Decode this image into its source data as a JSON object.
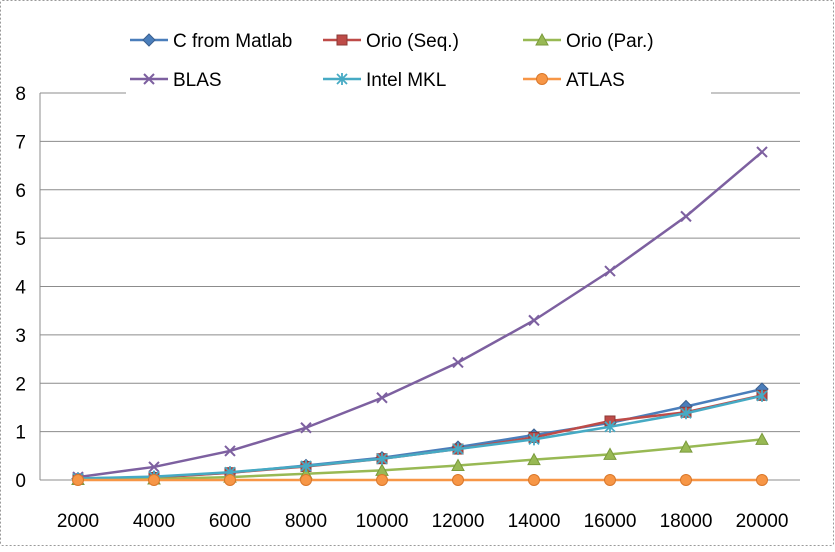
{
  "chart_data": {
    "type": "line",
    "title": "",
    "xlabel": "",
    "ylabel": "",
    "x": [
      2000,
      4000,
      6000,
      8000,
      10000,
      12000,
      14000,
      16000,
      18000,
      20000
    ],
    "x_tick_labels": [
      "2000",
      "4000",
      "6000",
      "8000",
      "10000",
      "12000",
      "14000",
      "16000",
      "18000",
      "20000"
    ],
    "y_tick_labels": [
      "0",
      "1",
      "2",
      "3",
      "4",
      "5",
      "6",
      "7",
      "8"
    ],
    "ylim": [
      0,
      8
    ],
    "grid": "horizontal",
    "legend_position": "top",
    "series": [
      {
        "name": "C from Matlab",
        "color": "#4a7ebb",
        "marker": "diamond",
        "values": [
          0.03,
          0.06,
          0.15,
          0.3,
          0.46,
          0.68,
          0.93,
          1.18,
          1.52,
          1.88
        ]
      },
      {
        "name": "Orio (Seq.)",
        "color": "#be4b48",
        "marker": "square",
        "values": [
          0.02,
          0.05,
          0.15,
          0.28,
          0.44,
          0.64,
          0.88,
          1.22,
          1.4,
          1.75
        ]
      },
      {
        "name": "Orio (Par.)",
        "color": "#98b954",
        "marker": "triangle",
        "values": [
          0.01,
          0.02,
          0.06,
          0.13,
          0.2,
          0.3,
          0.42,
          0.53,
          0.68,
          0.84
        ]
      },
      {
        "name": "BLAS",
        "color": "#7d60a0",
        "marker": "x",
        "values": [
          0.06,
          0.27,
          0.6,
          1.08,
          1.7,
          2.43,
          3.3,
          4.32,
          5.45,
          6.78
        ]
      },
      {
        "name": "Intel MKL",
        "color": "#46aac4",
        "marker": "star",
        "values": [
          0.03,
          0.07,
          0.16,
          0.29,
          0.44,
          0.64,
          0.84,
          1.1,
          1.38,
          1.74
        ]
      },
      {
        "name": "ATLAS",
        "color": "#f79646",
        "marker": "circle",
        "values": [
          0.0,
          0.0,
          0.0,
          0.0,
          0.0,
          0.0,
          0.0,
          0.0,
          0.0,
          0.0
        ]
      }
    ]
  }
}
